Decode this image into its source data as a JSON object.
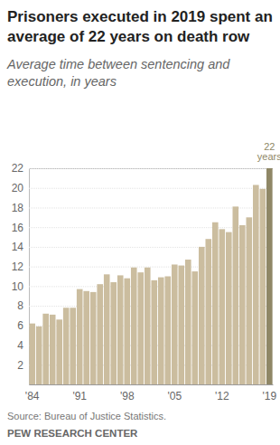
{
  "chart_data": {
    "type": "bar",
    "title": "Prisoners executed in 2019 spent an average of 22 years on death row",
    "subtitle": "Average time between sentencing and execution, in years",
    "source": "Source: Bureau of Justice Statistics.",
    "credit": "PEW RESEARCH CENTER",
    "annotations": [
      "22 years"
    ],
    "categories": [
      "'84",
      null,
      null,
      null,
      null,
      null,
      null,
      "'91",
      null,
      null,
      null,
      null,
      null,
      null,
      "'98",
      null,
      null,
      null,
      null,
      null,
      null,
      "'05",
      null,
      null,
      null,
      null,
      null,
      null,
      "'12",
      null,
      null,
      null,
      null,
      null,
      null,
      "'19"
    ],
    "values": [
      6.2,
      5.9,
      7.2,
      7.1,
      6.6,
      7.8,
      7.8,
      9.7,
      9.5,
      9.4,
      10.2,
      11.2,
      10.4,
      11.1,
      10.8,
      11.9,
      11.4,
      11.9,
      10.6,
      10.9,
      11.0,
      12.2,
      12.1,
      12.7,
      11.5,
      14.0,
      14.8,
      16.5,
      15.8,
      15.5,
      18.1,
      16.2,
      17.0,
      20.3,
      19.9,
      22.0
    ],
    "colors": [
      "#cbbd9f",
      "#cbbd9f",
      "#cbbd9f",
      "#cbbd9f",
      "#cbbd9f",
      "#cbbd9f",
      "#cbbd9f",
      "#cbbd9f",
      "#cbbd9f",
      "#cbbd9f",
      "#cbbd9f",
      "#cbbd9f",
      "#cbbd9f",
      "#cbbd9f",
      "#cbbd9f",
      "#cbbd9f",
      "#cbbd9f",
      "#cbbd9f",
      "#cbbd9f",
      "#cbbd9f",
      "#cbbd9f",
      "#cbbd9f",
      "#cbbd9f",
      "#cbbd9f",
      "#cbbd9f",
      "#cbbd9f",
      "#cbbd9f",
      "#cbbd9f",
      "#cbbd9f",
      "#cbbd9f",
      "#cbbd9f",
      "#cbbd9f",
      "#cbbd9f",
      "#cbbd9f",
      "#cbbd9f",
      "#8f8766"
    ],
    "ylim": [
      0,
      22
    ],
    "yticks": [
      2,
      4,
      6,
      8,
      10,
      12,
      14,
      16,
      18,
      20,
      22
    ],
    "grid": true
  }
}
